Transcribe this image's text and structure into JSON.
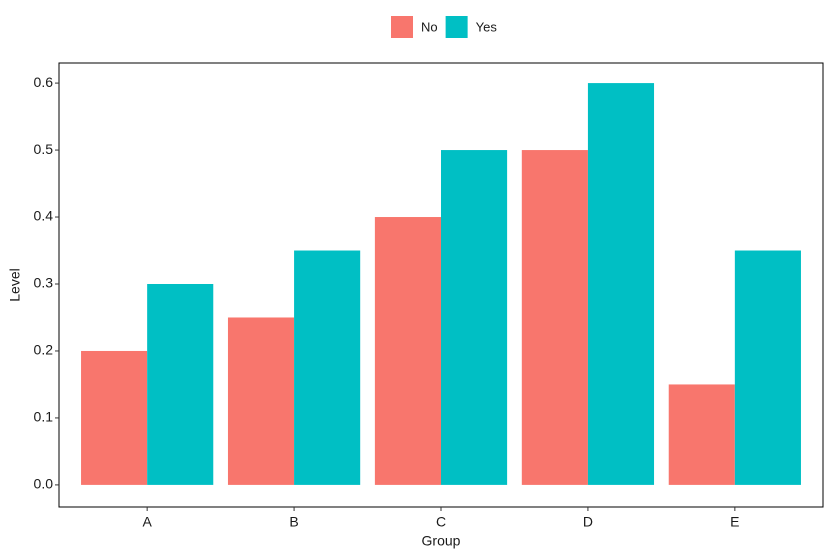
{
  "chart_data": {
    "type": "bar",
    "x_label": "Group",
    "y_label": "Level",
    "categories": [
      "A",
      "B",
      "C",
      "D",
      "E"
    ],
    "series": [
      {
        "name": "No",
        "color": "#f8766d",
        "values": [
          0.2,
          0.25,
          0.4,
          0.5,
          0.15
        ]
      },
      {
        "name": "Yes",
        "color": "#00bfc4",
        "values": [
          0.3,
          0.35,
          0.5,
          0.6,
          0.35
        ]
      }
    ],
    "ylim": [
      -0.033,
      0.63
    ],
    "yticks": [
      {
        "value": 0,
        "label": "0.0"
      },
      0.1,
      0.2,
      0.3,
      0.4,
      0.5,
      0.6
    ],
    "legend": "top",
    "grid": false
  }
}
